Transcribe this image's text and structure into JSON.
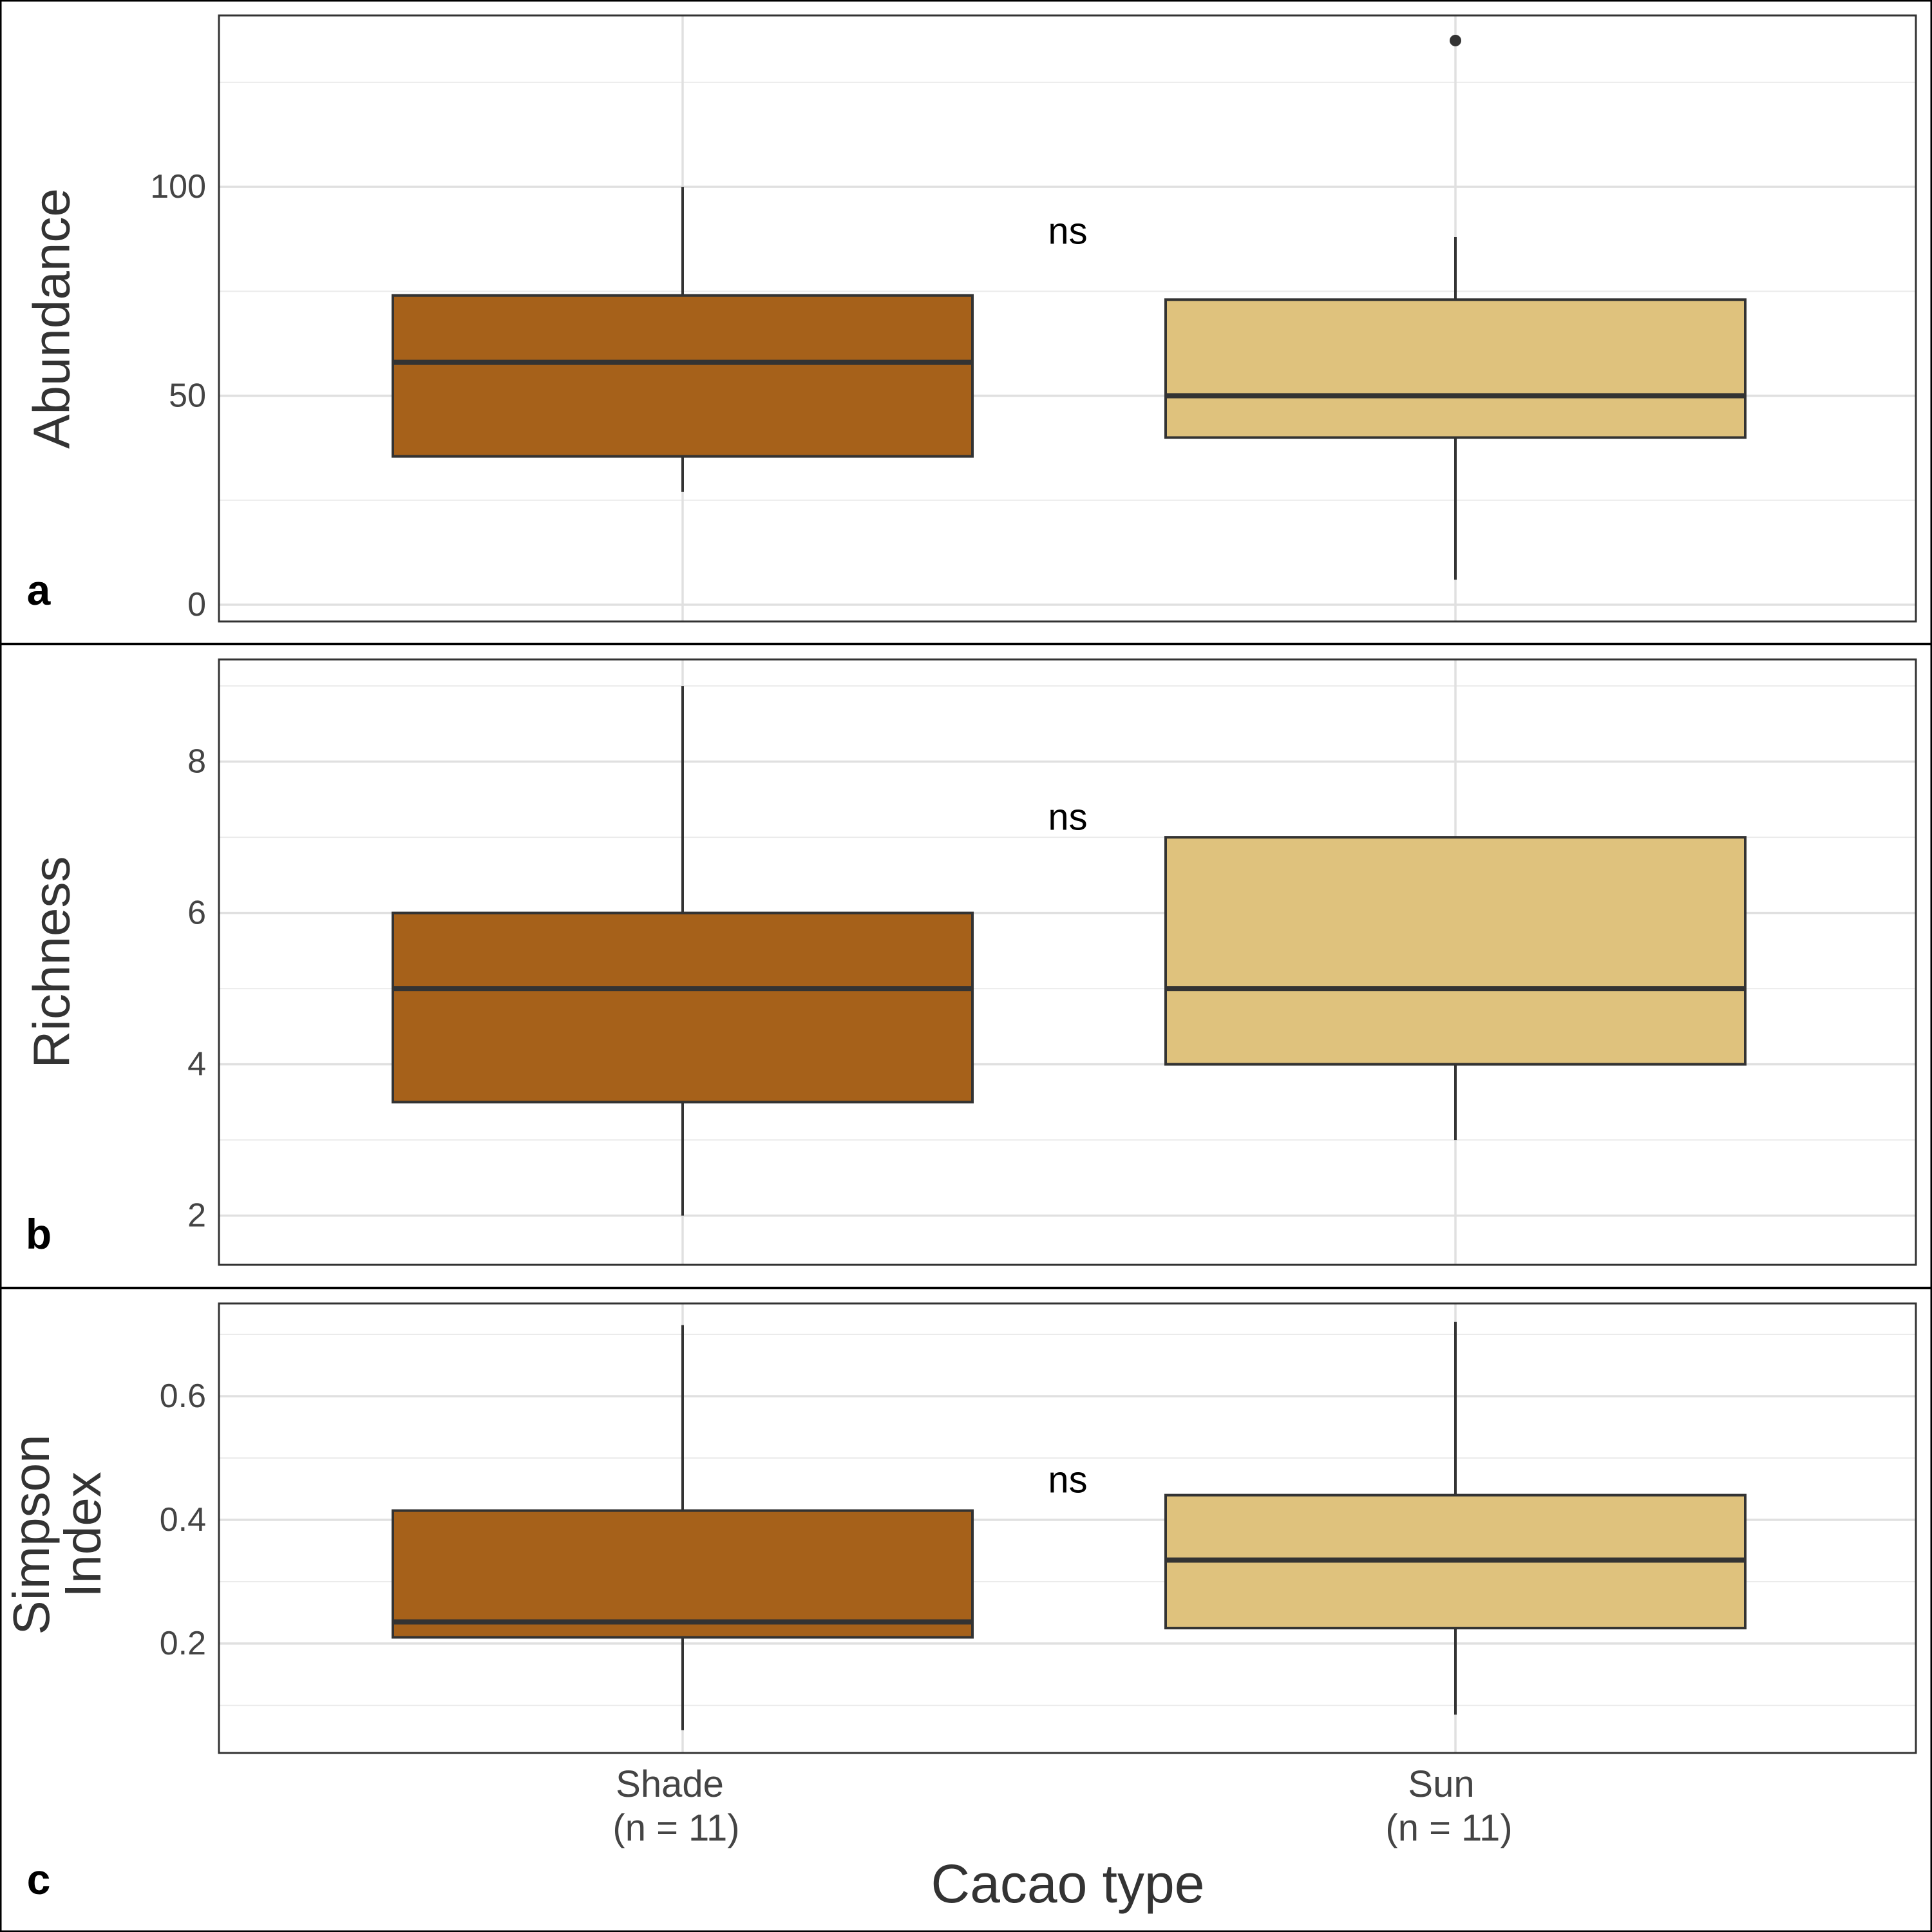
{
  "chart_data": [
    {
      "type": "box",
      "panel_label": "a",
      "ylabel": "Abundance",
      "ylim": [
        -4,
        141
      ],
      "yticks": [
        0,
        50,
        100
      ],
      "annotation": "ns",
      "grid": true,
      "boxes": [
        {
          "category": "Shade",
          "whisker_low": 27,
          "q1": 35.5,
          "median": 58,
          "q3": 74,
          "whisker_high": 100,
          "outliers": [],
          "color": "#a6611a"
        },
        {
          "category": "Sun",
          "whisker_low": 6,
          "q1": 40,
          "median": 50,
          "q3": 73,
          "whisker_high": 88,
          "outliers": [
            135
          ],
          "color": "#dfc27d"
        }
      ]
    },
    {
      "type": "box",
      "panel_label": "b",
      "ylabel": "Richness",
      "ylim": [
        1.35,
        9.35
      ],
      "yticks": [
        2,
        4,
        6,
        8
      ],
      "annotation": "ns",
      "grid": true,
      "boxes": [
        {
          "category": "Shade",
          "whisker_low": 2,
          "q1": 3.5,
          "median": 5,
          "q3": 6,
          "whisker_high": 9,
          "outliers": [],
          "color": "#a6611a"
        },
        {
          "category": "Sun",
          "whisker_low": 3,
          "q1": 4,
          "median": 5,
          "q3": 7,
          "whisker_high": 7,
          "outliers": [],
          "color": "#dfc27d"
        }
      ]
    },
    {
      "type": "box",
      "panel_label": "c",
      "ylabel": [
        "Simpson",
        "Index"
      ],
      "ylim": [
        0.023,
        0.75
      ],
      "yticks": [
        0.2,
        0.4,
        0.6
      ],
      "ytick_labels": [
        "0.2",
        "0.4",
        "0.6"
      ],
      "annotation": "ns",
      "grid": true,
      "xlabel": "Cacao type",
      "categories": [
        "Shade",
        "Sun"
      ],
      "category_labels": [
        [
          "Shade",
          "(n = 11)"
        ],
        [
          "Sun",
          "(n = 11)"
        ]
      ],
      "boxes": [
        {
          "category": "Shade",
          "whisker_low": 0.06,
          "q1": 0.21,
          "median": 0.235,
          "q3": 0.415,
          "whisker_high": 0.715,
          "outliers": [],
          "color": "#a6611a"
        },
        {
          "category": "Sun",
          "whisker_low": 0.085,
          "q1": 0.225,
          "median": 0.335,
          "q3": 0.44,
          "whisker_high": 0.72,
          "outliers": [],
          "color": "#dfc27d"
        }
      ]
    }
  ]
}
